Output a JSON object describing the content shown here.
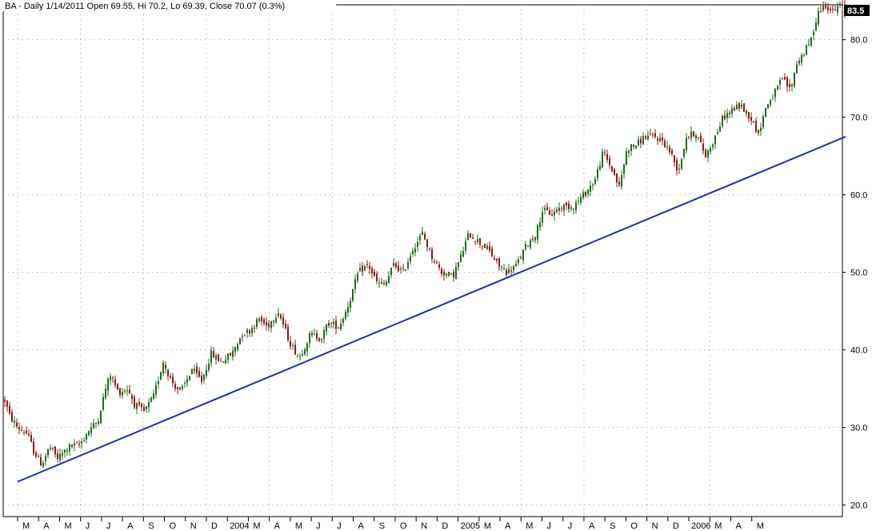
{
  "chart_data": {
    "type": "candlestick",
    "title": "BA - Daily 1/14/2011 Open 69.55, Hi 70.2, Lo 69.39, Close 70.07 (0.3%)",
    "last_value_label": "83.5",
    "xlabel": "",
    "ylabel": "",
    "ylim": [
      18.5,
      84.5
    ],
    "y_ticks": [
      "20.0",
      "30.0",
      "40.0",
      "50.0",
      "60.0",
      "70.0",
      "80.0"
    ],
    "x_ticks": [
      "M",
      "A",
      "M",
      "J",
      "J",
      "A",
      "S",
      "O",
      "N",
      "D",
      "2004",
      "M",
      "A",
      "M",
      "J",
      "J",
      "A",
      "S",
      "O",
      "N",
      "D",
      "2005",
      "M",
      "A",
      "M",
      "J",
      "J",
      "A",
      "S",
      "O",
      "N",
      "D",
      "2006",
      "M",
      "A",
      "M"
    ],
    "grid": true,
    "colors": {
      "up": "#1f6b1f",
      "down": "#8b1a1a",
      "trendline": "#1c2fb0",
      "grid": "#9a9a9a",
      "value_box": "#000000"
    },
    "price_path": [
      [
        0,
        33.5
      ],
      [
        6,
        31.5
      ],
      [
        16,
        30.0
      ],
      [
        28,
        29.2
      ],
      [
        36,
        27.0
      ],
      [
        46,
        25.2
      ],
      [
        56,
        27.5
      ],
      [
        66,
        26.0
      ],
      [
        80,
        27.5
      ],
      [
        94,
        27.8
      ],
      [
        104,
        29.5
      ],
      [
        116,
        30.8
      ],
      [
        126,
        35.0
      ],
      [
        132,
        36.8
      ],
      [
        142,
        34.5
      ],
      [
        154,
        35.0
      ],
      [
        162,
        33.0
      ],
      [
        174,
        32.0
      ],
      [
        186,
        34.0
      ],
      [
        198,
        38.5
      ],
      [
        208,
        36.0
      ],
      [
        220,
        34.5
      ],
      [
        234,
        37.5
      ],
      [
        246,
        36.0
      ],
      [
        258,
        39.5
      ],
      [
        270,
        38.5
      ],
      [
        284,
        39.5
      ],
      [
        296,
        42.0
      ],
      [
        306,
        42.5
      ],
      [
        318,
        44.0
      ],
      [
        328,
        43.0
      ],
      [
        342,
        45.0
      ],
      [
        356,
        41.0
      ],
      [
        368,
        39.0
      ],
      [
        382,
        42.0
      ],
      [
        396,
        41.5
      ],
      [
        404,
        43.5
      ],
      [
        418,
        43.0
      ],
      [
        430,
        46.0
      ],
      [
        442,
        50.0
      ],
      [
        454,
        51.0
      ],
      [
        466,
        48.5
      ],
      [
        476,
        48.5
      ],
      [
        486,
        51.0
      ],
      [
        498,
        50.0
      ],
      [
        510,
        53.0
      ],
      [
        522,
        55.0
      ],
      [
        534,
        52.0
      ],
      [
        546,
        50.0
      ],
      [
        560,
        49.5
      ],
      [
        570,
        52.0
      ],
      [
        580,
        55.0
      ],
      [
        592,
        54.0
      ],
      [
        604,
        53.0
      ],
      [
        616,
        51.0
      ],
      [
        628,
        50.0
      ],
      [
        640,
        51.0
      ],
      [
        652,
        53.5
      ],
      [
        664,
        55.0
      ],
      [
        672,
        58.0
      ],
      [
        684,
        57.5
      ],
      [
        696,
        58.5
      ],
      [
        710,
        58.5
      ],
      [
        724,
        60.0
      ],
      [
        738,
        62.0
      ],
      [
        748,
        65.5
      ],
      [
        758,
        63.5
      ],
      [
        768,
        61.0
      ],
      [
        778,
        66.0
      ],
      [
        790,
        66.5
      ],
      [
        800,
        67.5
      ],
      [
        812,
        67.5
      ],
      [
        822,
        67.0
      ],
      [
        832,
        65.5
      ],
      [
        842,
        63.0
      ],
      [
        852,
        67.5
      ],
      [
        864,
        68.0
      ],
      [
        876,
        65.0
      ],
      [
        888,
        67.5
      ],
      [
        898,
        70.0
      ],
      [
        910,
        71.0
      ],
      [
        920,
        71.5
      ],
      [
        932,
        70.0
      ],
      [
        942,
        68.0
      ],
      [
        952,
        71.5
      ],
      [
        962,
        73.0
      ],
      [
        972,
        75.0
      ],
      [
        982,
        73.5
      ],
      [
        990,
        77.0
      ],
      [
        1000,
        78.5
      ],
      [
        1008,
        80.0
      ],
      [
        1016,
        83.5
      ],
      [
        1026,
        84.5
      ],
      [
        1036,
        83.5
      ],
      [
        1044,
        84.5
      ],
      [
        1050,
        83.5
      ]
    ],
    "trendline": [
      [
        0,
        23.0
      ],
      [
        1053,
        67.5
      ]
    ]
  }
}
